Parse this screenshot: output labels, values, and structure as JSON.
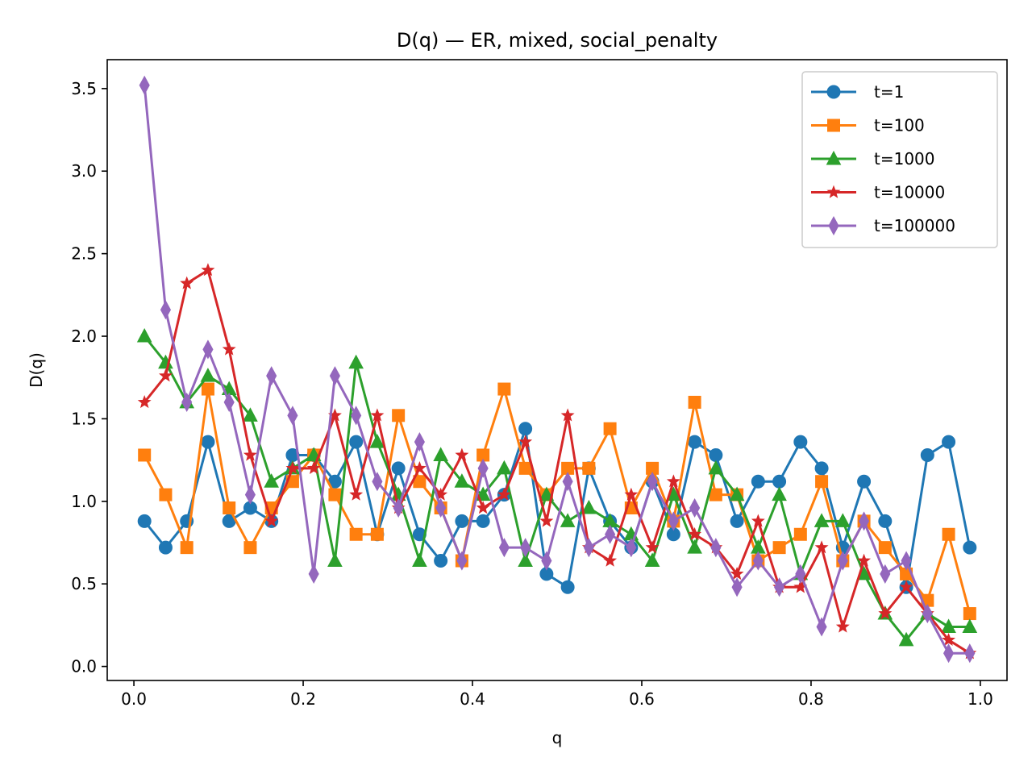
{
  "chart_data": {
    "type": "line",
    "title": "D(q) — ER, mixed, social_penalty",
    "xlabel": "q",
    "ylabel": "D(q)",
    "xlim": [
      -0.0315,
      1.0315
    ],
    "ylim": [
      -0.085,
      3.675
    ],
    "xticks": [
      0.0,
      0.2,
      0.4,
      0.6,
      0.8,
      1.0
    ],
    "xtick_labels": [
      "0.0",
      "0.2",
      "0.4",
      "0.6",
      "0.8",
      "1.0"
    ],
    "yticks": [
      0.0,
      0.5,
      1.0,
      1.5,
      2.0,
      2.5,
      3.0,
      3.5
    ],
    "ytick_labels": [
      "0.0",
      "0.5",
      "1.0",
      "1.5",
      "2.0",
      "2.5",
      "3.0",
      "3.5"
    ],
    "grid": false,
    "legend_position": "top-right",
    "x": [
      0.0125,
      0.0375,
      0.0625,
      0.0875,
      0.1125,
      0.1375,
      0.1625,
      0.1875,
      0.2125,
      0.2375,
      0.2625,
      0.2875,
      0.3125,
      0.3375,
      0.3625,
      0.3875,
      0.4125,
      0.4375,
      0.4625,
      0.4875,
      0.5125,
      0.5375,
      0.5625,
      0.5875,
      0.6125,
      0.6375,
      0.6625,
      0.6875,
      0.7125,
      0.7375,
      0.7625,
      0.7875,
      0.8125,
      0.8375,
      0.8625,
      0.8875,
      0.9125,
      0.9375,
      0.9625,
      0.9875
    ],
    "series": [
      {
        "name": "t=1",
        "color": "#1f77b4",
        "marker": "circle",
        "values": [
          0.88,
          0.72,
          0.88,
          1.36,
          0.88,
          0.96,
          0.88,
          1.28,
          1.28,
          1.12,
          1.36,
          0.8,
          1.2,
          0.8,
          0.64,
          0.88,
          0.88,
          1.04,
          1.44,
          0.56,
          0.48,
          1.2,
          0.88,
          0.72,
          1.12,
          0.8,
          1.36,
          1.28,
          0.88,
          1.12,
          1.12,
          1.36,
          1.2,
          0.72,
          1.12,
          0.88,
          0.48,
          1.28,
          1.36,
          0.72
        ]
      },
      {
        "name": "t=100",
        "color": "#ff7f0e",
        "marker": "square",
        "values": [
          1.28,
          1.04,
          0.72,
          1.68,
          0.96,
          0.72,
          0.96,
          1.12,
          1.28,
          1.04,
          0.8,
          0.8,
          1.52,
          1.12,
          0.96,
          0.64,
          1.28,
          1.68,
          1.2,
          1.04,
          1.2,
          1.2,
          1.44,
          0.96,
          1.2,
          0.88,
          1.6,
          1.04,
          1.04,
          0.64,
          0.72,
          0.8,
          1.12,
          0.64,
          0.88,
          0.72,
          0.56,
          0.4,
          0.8,
          0.32
        ]
      },
      {
        "name": "t=1000",
        "color": "#2ca02c",
        "marker": "triangle",
        "values": [
          2.0,
          1.84,
          1.6,
          1.76,
          1.68,
          1.52,
          1.12,
          1.2,
          1.28,
          0.64,
          1.84,
          1.36,
          1.04,
          0.64,
          1.28,
          1.12,
          1.04,
          1.2,
          0.64,
          1.04,
          0.88,
          0.96,
          0.88,
          0.8,
          0.64,
          1.04,
          0.72,
          1.2,
          1.04,
          0.72,
          1.04,
          0.56,
          0.88,
          0.88,
          0.56,
          0.32,
          0.16,
          0.32,
          0.24,
          0.24
        ]
      },
      {
        "name": "t=10000",
        "color": "#d62728",
        "marker": "star",
        "values": [
          1.6,
          1.76,
          2.32,
          2.4,
          1.92,
          1.28,
          0.88,
          1.2,
          1.2,
          1.52,
          1.04,
          1.52,
          0.96,
          1.2,
          1.04,
          1.28,
          0.96,
          1.04,
          1.36,
          0.88,
          1.52,
          0.72,
          0.64,
          1.04,
          0.72,
          1.12,
          0.8,
          0.72,
          0.56,
          0.88,
          0.48,
          0.48,
          0.72,
          0.24,
          0.64,
          0.32,
          0.48,
          0.32,
          0.16,
          0.08
        ]
      },
      {
        "name": "t=100000",
        "color": "#9467bd",
        "marker": "thin_diamond",
        "values": [
          3.52,
          2.16,
          1.6,
          1.92,
          1.6,
          1.04,
          1.76,
          1.52,
          0.56,
          1.76,
          1.52,
          1.12,
          0.96,
          1.36,
          0.96,
          0.64,
          1.2,
          0.72,
          0.72,
          0.64,
          1.12,
          0.72,
          0.8,
          0.72,
          1.12,
          0.88,
          0.96,
          0.72,
          0.48,
          0.64,
          0.48,
          0.56,
          0.24,
          0.64,
          0.88,
          0.56,
          0.64,
          0.32,
          0.08,
          0.08
        ]
      }
    ]
  }
}
